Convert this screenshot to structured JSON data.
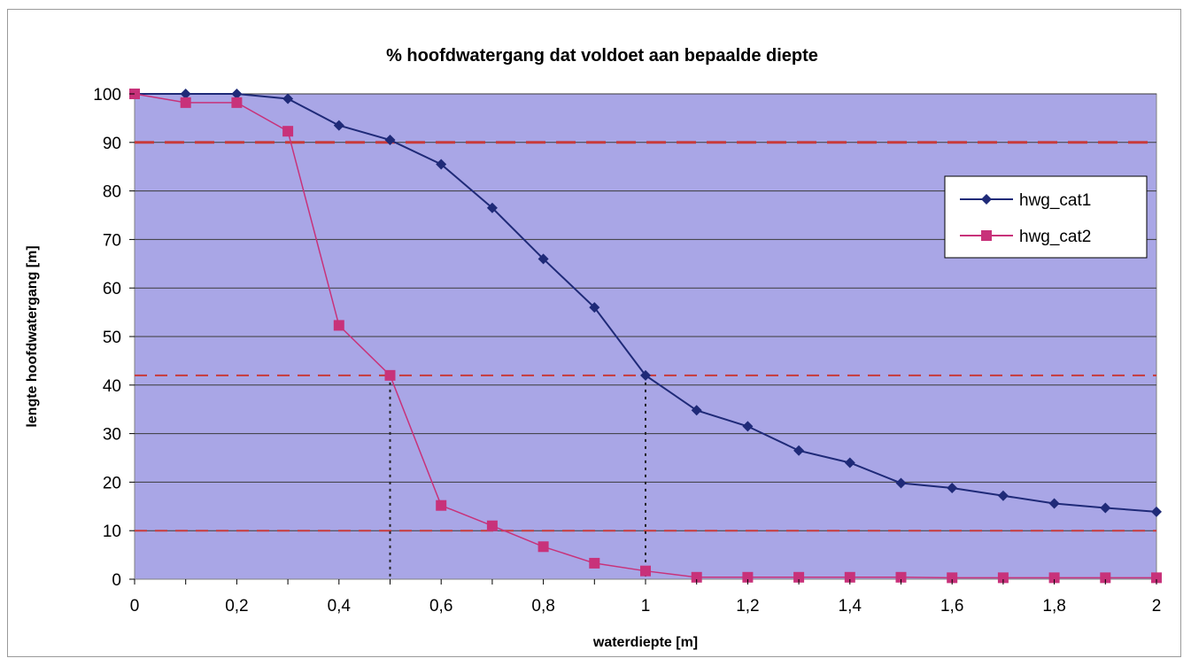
{
  "chart_data": {
    "type": "line",
    "title": "% hoofdwatergang dat voldoet aan bepaalde diepte",
    "xlabel": "waterdiepte [m]",
    "ylabel": "lengte hoofdwatergang [m]",
    "xlim": [
      0,
      2
    ],
    "ylim": [
      0,
      100
    ],
    "x_ticks": [
      "0",
      "0,2",
      "0,4",
      "0,6",
      "0,8",
      "1",
      "1,2",
      "1,4",
      "1,6",
      "1,8",
      "2"
    ],
    "y_ticks": [
      "0",
      "10",
      "20",
      "30",
      "40",
      "50",
      "60",
      "70",
      "80",
      "90",
      "100"
    ],
    "grid": true,
    "legend_position": "right",
    "plot_background": "#A9A6E6",
    "x": [
      0,
      0.1,
      0.2,
      0.3,
      0.4,
      0.5,
      0.6,
      0.7,
      0.8,
      0.9,
      1.0,
      1.1,
      1.2,
      1.3,
      1.4,
      1.5,
      1.6,
      1.7,
      1.8,
      1.9,
      2.0
    ],
    "series": [
      {
        "name": "hwg_cat1",
        "color": "#1F2A78",
        "marker": "diamond",
        "values": [
          100,
          100,
          100,
          99,
          93.5,
          90.5,
          85.5,
          76.5,
          66,
          56,
          42,
          34.8,
          31.5,
          26.5,
          24,
          19.8,
          18.8,
          17.2,
          15.6,
          14.7,
          13.9
        ]
      },
      {
        "name": "hwg_cat2",
        "color": "#C8327A",
        "marker": "square",
        "values": [
          100,
          98.2,
          98.2,
          92.3,
          52.3,
          42,
          15.2,
          11,
          6.7,
          3.3,
          1.7,
          0.4,
          0.4,
          0.4,
          0.4,
          0.4,
          0.3,
          0.3,
          0.3,
          0.3,
          0.3
        ]
      }
    ],
    "reference_lines": {
      "horizontal": [
        90,
        42,
        10
      ],
      "vertical": [
        {
          "x": 0.5,
          "to_y": 42
        },
        {
          "x": 1.0,
          "to_y": 42
        }
      ],
      "color": "#C83A3A"
    }
  }
}
